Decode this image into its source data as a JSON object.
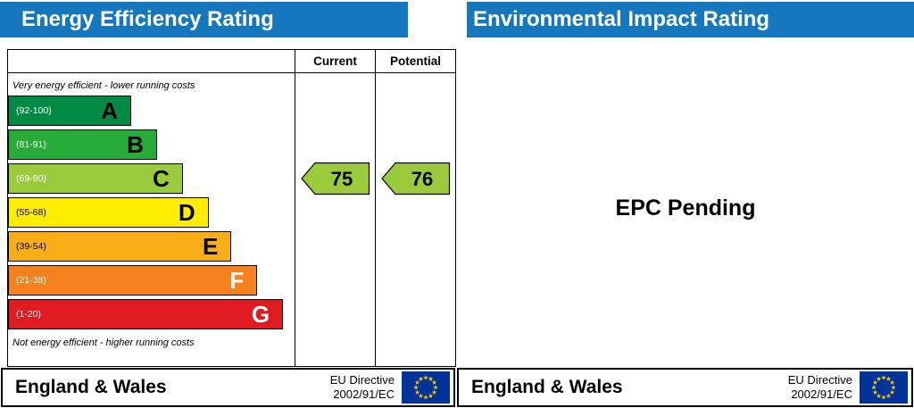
{
  "colors": {
    "header_blue": "#1577bd",
    "flag_blue": "#003399",
    "flag_star_yellow": "#ffcc00"
  },
  "headers": {
    "left_title": "Energy Efficiency Rating",
    "right_title": "Environmental Impact Rating"
  },
  "chart": {
    "columns": {
      "current": "Current",
      "potential": "Potential"
    },
    "top_note": "Very energy efficient - lower running costs",
    "bottom_note": "Not energy efficient - higher running costs",
    "bands": [
      {
        "letter": "A",
        "range": "(92-100)",
        "color": "#008a43",
        "width_pct": 43,
        "range_color": "#ffffff",
        "letter_color": "#000000"
      },
      {
        "letter": "B",
        "range": "(81-91)",
        "color": "#27ab39",
        "width_pct": 52,
        "range_color": "#ffffff",
        "letter_color": "#000000"
      },
      {
        "letter": "C",
        "range": "(69-80)",
        "color": "#9acb3c",
        "width_pct": 61,
        "range_color": "#ffffff",
        "letter_color": "#000000"
      },
      {
        "letter": "D",
        "range": "(55-68)",
        "color": "#ffed00",
        "width_pct": 70,
        "range_color": "#000000",
        "letter_color": "#000000"
      },
      {
        "letter": "E",
        "range": "(39-54)",
        "color": "#f8af17",
        "width_pct": 78,
        "range_color": "#000000",
        "letter_color": "#000000"
      },
      {
        "letter": "F",
        "range": "(21-38)",
        "color": "#f5821f",
        "width_pct": 87,
        "range_color": "#ffffff",
        "letter_color": "#ffffff"
      },
      {
        "letter": "G",
        "range": "(1-20)",
        "color": "#e01b22",
        "width_pct": 96,
        "range_color": "#ffffff",
        "letter_color": "#ffffff"
      }
    ],
    "current": {
      "value": "75",
      "color": "#9acb3c",
      "band_index": 2
    },
    "potential": {
      "value": "76",
      "color": "#9acb3c",
      "band_index": 2
    }
  },
  "environmental_panel": {
    "message": "EPC Pending"
  },
  "footer": {
    "region": "England & Wales",
    "directive_line1": "EU Directive",
    "directive_line2": "2002/91/EC"
  },
  "chart_data": {
    "type": "bar",
    "title": "Energy Efficiency Rating",
    "categories": [
      "A",
      "B",
      "C",
      "D",
      "E",
      "F",
      "G"
    ],
    "band_ranges": [
      [
        92,
        100
      ],
      [
        81,
        91
      ],
      [
        69,
        80
      ],
      [
        55,
        68
      ],
      [
        39,
        54
      ],
      [
        21,
        38
      ],
      [
        1,
        20
      ]
    ],
    "band_labels": [
      "(92-100)",
      "(81-91)",
      "(69-80)",
      "(55-68)",
      "(39-54)",
      "(21-38)",
      "(1-20)"
    ],
    "markers": {
      "current": 75,
      "potential": 76
    },
    "current_band": "C",
    "potential_band": "C",
    "notes": [
      "Very energy efficient - lower running costs",
      "Not energy efficient - higher running costs"
    ],
    "right_panel_text": "EPC Pending"
  }
}
